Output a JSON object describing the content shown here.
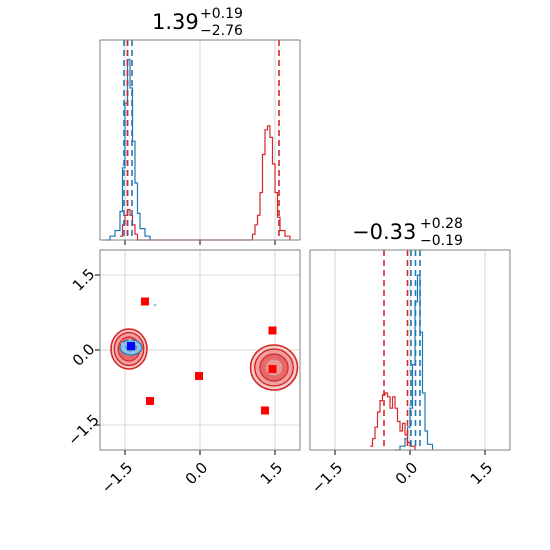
{
  "chart_data": {
    "type": "corner",
    "params": 2,
    "titles": [
      {
        "value": "1.39",
        "plus": "+0.19",
        "minus": "−2.76"
      },
      {
        "value": "−0.33",
        "plus": "+0.28",
        "minus": "−0.19"
      }
    ],
    "axis_range": [
      -2.0,
      2.0
    ],
    "ticks": [
      -1.5,
      0.0,
      1.5
    ],
    "tick_labels": [
      "−1.5",
      "0.0",
      "1.5"
    ],
    "grid": true,
    "colors": {
      "blue": "#1f77b4",
      "red": "#d62728",
      "marker_red": "#ff0000",
      "marker_blue": "#0000ff",
      "frame": "#808080",
      "grid": "#cccccc"
    },
    "marginal_x": {
      "x_range": [
        -2.0,
        2.0
      ],
      "blue_hist": [
        [
          -1.9,
          0.0
        ],
        [
          -1.8,
          0.02
        ],
        [
          -1.7,
          0.05
        ],
        [
          -1.6,
          0.15
        ],
        [
          -1.55,
          0.38
        ],
        [
          -1.5,
          0.72
        ],
        [
          -1.45,
          0.95
        ],
        [
          -1.4,
          0.8
        ],
        [
          -1.35,
          0.52
        ],
        [
          -1.3,
          0.3
        ],
        [
          -1.25,
          0.14
        ],
        [
          -1.2,
          0.06
        ],
        [
          -1.1,
          0.02
        ],
        [
          -1.0,
          0.0
        ]
      ],
      "red_hist": [
        [
          -1.6,
          0.02
        ],
        [
          -1.55,
          0.08
        ],
        [
          -1.5,
          0.13
        ],
        [
          -1.45,
          0.16
        ],
        [
          -1.4,
          0.13
        ],
        [
          -1.35,
          0.08
        ],
        [
          -1.3,
          0.03
        ],
        [
          -1.25,
          0.0
        ],
        [
          1.0,
          0.0
        ],
        [
          1.05,
          0.03
        ],
        [
          1.1,
          0.08
        ],
        [
          1.15,
          0.13
        ],
        [
          1.2,
          0.25
        ],
        [
          1.25,
          0.45
        ],
        [
          1.3,
          0.58
        ],
        [
          1.35,
          0.6
        ],
        [
          1.4,
          0.54
        ],
        [
          1.45,
          0.4
        ],
        [
          1.5,
          0.25
        ],
        [
          1.55,
          0.12
        ],
        [
          1.6,
          0.05
        ],
        [
          1.7,
          0.02
        ],
        [
          1.8,
          0.0
        ]
      ],
      "blue_quantiles": [
        -1.52,
        -1.45,
        -1.36
      ],
      "red_quantiles": [
        -1.45,
        1.58
      ]
    },
    "marginal_y": {
      "x_range": [
        -2.0,
        2.0
      ],
      "blue_hist": [
        [
          -0.3,
          0.0
        ],
        [
          -0.2,
          0.02
        ],
        [
          -0.1,
          0.06
        ],
        [
          -0.05,
          0.12
        ],
        [
          0.0,
          0.22
        ],
        [
          0.05,
          0.45
        ],
        [
          0.1,
          0.78
        ],
        [
          0.15,
          0.92
        ],
        [
          0.2,
          0.62
        ],
        [
          0.25,
          0.3
        ],
        [
          0.3,
          0.1
        ],
        [
          0.35,
          0.03
        ],
        [
          0.45,
          0.0
        ]
      ],
      "red_hist": [
        [
          -0.8,
          0.02
        ],
        [
          -0.75,
          0.06
        ],
        [
          -0.7,
          0.12
        ],
        [
          -0.65,
          0.2
        ],
        [
          -0.6,
          0.26
        ],
        [
          -0.55,
          0.29
        ],
        [
          -0.5,
          0.3
        ],
        [
          -0.45,
          0.28
        ],
        [
          -0.4,
          0.22
        ],
        [
          -0.35,
          0.28
        ],
        [
          -0.3,
          0.22
        ],
        [
          -0.25,
          0.15
        ],
        [
          -0.2,
          0.1
        ],
        [
          -0.15,
          0.14
        ],
        [
          -0.1,
          0.08
        ],
        [
          -0.05,
          0.04
        ],
        [
          0.0,
          0.02
        ],
        [
          0.1,
          0.0
        ]
      ],
      "blue_quantiles": [
        0.02,
        0.11,
        0.2
      ],
      "red_quantiles": [
        -0.52,
        -0.05
      ]
    },
    "joint": {
      "blue_points": [
        [
          -1.45,
          0.08
        ],
        [
          -1.3,
          0.15
        ],
        [
          -1.5,
          0.0
        ],
        [
          -1.35,
          -0.05
        ],
        [
          -1.4,
          0.2
        ],
        [
          -1.25,
          0.1
        ],
        [
          -1.55,
          0.12
        ],
        [
          -0.9,
          0.9
        ]
      ],
      "blue_cluster": {
        "x": -1.38,
        "y": 0.05,
        "rx": 0.22,
        "ry": 0.15
      },
      "red_clusters": [
        {
          "x": -1.42,
          "y": 0.02,
          "rx": 0.36,
          "ry": 0.4
        },
        {
          "x": 1.48,
          "y": -0.35,
          "rx": 0.47,
          "ry": 0.45
        }
      ],
      "red_markers": [
        [
          -1.1,
          0.97
        ],
        [
          1.45,
          0.39
        ],
        [
          -0.02,
          -0.52
        ],
        [
          -1.0,
          -1.02
        ],
        [
          1.3,
          -1.21
        ],
        [
          1.45,
          -0.38
        ]
      ],
      "blue_marker": [
        -1.38,
        0.08
      ]
    }
  }
}
